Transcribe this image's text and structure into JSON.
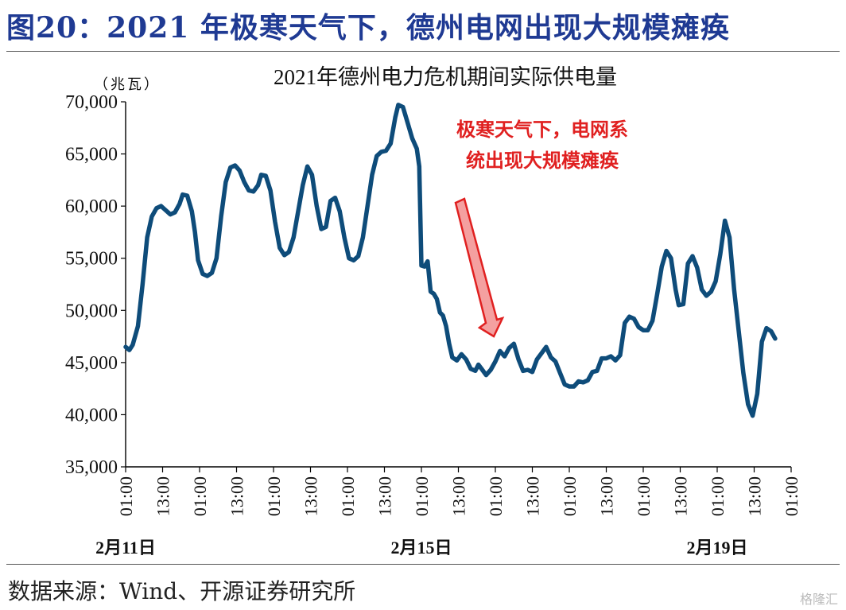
{
  "figure": {
    "title": "图20：2021 年极寒天气下，德州电网出现大规模瘫痪",
    "source": "数据来源：Wind、开源证券研究所",
    "watermark": "格隆汇"
  },
  "chart_data": {
    "type": "line",
    "title": "2021年德州电力危机期间实际供电量",
    "ylabel": "（兆瓦）",
    "ylim": [
      35000,
      70000
    ],
    "yticks": [
      "70,000",
      "65,000",
      "60,000",
      "55,000",
      "50,000",
      "45,000",
      "40,000",
      "35,000"
    ],
    "xtick_labels": [
      "01:00",
      "13:00",
      "01:00",
      "13:00",
      "01:00",
      "13:00",
      "01:00",
      "13:00",
      "01:00",
      "13:00",
      "01:00",
      "13:00",
      "01:00",
      "13:00",
      "01:00",
      "13:00",
      "01:00",
      "13:00",
      "01:00"
    ],
    "date_labels": [
      {
        "label": "2月11日",
        "hour": 0
      },
      {
        "label": "2月15日",
        "hour": 96
      },
      {
        "label": "2月19日",
        "hour": 192
      }
    ],
    "annotation": {
      "text_line1": "极寒天气下，电网系",
      "text_line2": "统出现大规模瘫痪"
    },
    "colors": {
      "line": "#0E4C7A",
      "annotation": "#E02020",
      "arrow_fill": "#F4A0A0",
      "title": "#1F3A93"
    },
    "x_hours_range": [
      0,
      216
    ],
    "series": [
      {
        "points": [
          [
            0,
            46500
          ],
          [
            1.2,
            46200
          ],
          [
            2.3,
            46700
          ],
          [
            4,
            48500
          ],
          [
            5.5,
            52500
          ],
          [
            7,
            57000
          ],
          [
            8.5,
            59000
          ],
          [
            10,
            59800
          ],
          [
            11.5,
            60000
          ],
          [
            13,
            59600
          ],
          [
            14.5,
            59200
          ],
          [
            16,
            59400
          ],
          [
            17.5,
            60200
          ],
          [
            18.5,
            61100
          ],
          [
            20,
            61000
          ],
          [
            21.5,
            59500
          ],
          [
            22.5,
            57500
          ],
          [
            23.5,
            54800
          ],
          [
            25,
            53500
          ],
          [
            26.5,
            53300
          ],
          [
            28,
            53600
          ],
          [
            29.5,
            55000
          ],
          [
            31,
            59000
          ],
          [
            32.5,
            62300
          ],
          [
            34,
            63700
          ],
          [
            35.5,
            63900
          ],
          [
            37,
            63400
          ],
          [
            38.5,
            62300
          ],
          [
            40,
            61500
          ],
          [
            41.5,
            61400
          ],
          [
            43,
            62000
          ],
          [
            44,
            63000
          ],
          [
            45.5,
            62900
          ],
          [
            47,
            61500
          ],
          [
            48.5,
            58500
          ],
          [
            50,
            56000
          ],
          [
            51.5,
            55300
          ],
          [
            53,
            55600
          ],
          [
            54.5,
            57000
          ],
          [
            56,
            59500
          ],
          [
            57.5,
            62000
          ],
          [
            59,
            63800
          ],
          [
            60.5,
            63000
          ],
          [
            62,
            60000
          ],
          [
            63.5,
            57800
          ],
          [
            65,
            58000
          ],
          [
            66.5,
            60500
          ],
          [
            68,
            60800
          ],
          [
            69.5,
            59500
          ],
          [
            71,
            57000
          ],
          [
            72.5,
            55000
          ],
          [
            74,
            54800
          ],
          [
            75.5,
            55200
          ],
          [
            77,
            57000
          ],
          [
            78.5,
            60000
          ],
          [
            80,
            63000
          ],
          [
            81.5,
            64800
          ],
          [
            83,
            65200
          ],
          [
            84.5,
            65300
          ],
          [
            86,
            66000
          ],
          [
            87.5,
            68500
          ],
          [
            88.5,
            69700
          ],
          [
            90,
            69500
          ],
          [
            91.5,
            68000
          ],
          [
            93,
            66500
          ],
          [
            94.5,
            65500
          ],
          [
            95.3,
            63800
          ],
          [
            96,
            54300
          ],
          [
            97,
            54200
          ],
          [
            98,
            54700
          ],
          [
            99,
            51800
          ],
          [
            100,
            51600
          ],
          [
            101,
            51100
          ],
          [
            102,
            49800
          ],
          [
            103,
            49500
          ],
          [
            104,
            48500
          ],
          [
            105,
            46800
          ],
          [
            106,
            45500
          ],
          [
            107.5,
            45200
          ],
          [
            109,
            45800
          ],
          [
            110.5,
            45300
          ],
          [
            112,
            44400
          ],
          [
            113.5,
            44200
          ],
          [
            114.5,
            44800
          ],
          [
            115.5,
            44400
          ],
          [
            117,
            43800
          ],
          [
            118.5,
            44300
          ],
          [
            120,
            45100
          ],
          [
            121.5,
            46100
          ],
          [
            123,
            45600
          ],
          [
            124.5,
            46400
          ],
          [
            126,
            46800
          ],
          [
            127.5,
            45300
          ],
          [
            129,
            44200
          ],
          [
            130.5,
            44300
          ],
          [
            132,
            44100
          ],
          [
            133.5,
            45300
          ],
          [
            135,
            45900
          ],
          [
            136.5,
            46500
          ],
          [
            138,
            45500
          ],
          [
            139.5,
            45100
          ],
          [
            141,
            44000
          ],
          [
            142.5,
            42900
          ],
          [
            144,
            42700
          ],
          [
            145.5,
            42700
          ],
          [
            147,
            43200
          ],
          [
            148.5,
            43100
          ],
          [
            150,
            43300
          ],
          [
            151.5,
            44100
          ],
          [
            153,
            44200
          ],
          [
            154.5,
            45400
          ],
          [
            156,
            45400
          ],
          [
            157.5,
            45600
          ],
          [
            159,
            45200
          ],
          [
            160.5,
            45700
          ],
          [
            162,
            48800
          ],
          [
            163.5,
            49400
          ],
          [
            165,
            49200
          ],
          [
            166.5,
            48400
          ],
          [
            168,
            48100
          ],
          [
            169.5,
            48100
          ],
          [
            171,
            49000
          ],
          [
            172.5,
            51500
          ],
          [
            174,
            54200
          ],
          [
            175.5,
            55700
          ],
          [
            177,
            55000
          ],
          [
            178.5,
            52000
          ],
          [
            179.5,
            50500
          ],
          [
            181,
            50600
          ],
          [
            182.5,
            54500
          ],
          [
            184,
            55200
          ],
          [
            185.5,
            54100
          ],
          [
            187,
            52000
          ],
          [
            188.5,
            51400
          ],
          [
            190,
            51800
          ],
          [
            191.5,
            52800
          ],
          [
            193,
            55400
          ],
          [
            194.5,
            58600
          ],
          [
            196,
            57000
          ],
          [
            197.5,
            52000
          ],
          [
            199,
            48000
          ],
          [
            200.5,
            44000
          ],
          [
            202,
            41000
          ],
          [
            203.5,
            39900
          ],
          [
            205,
            42000
          ],
          [
            206.5,
            47000
          ],
          [
            208,
            48300
          ],
          [
            209.5,
            48000
          ],
          [
            210.8,
            47300
          ]
        ]
      }
    ]
  }
}
